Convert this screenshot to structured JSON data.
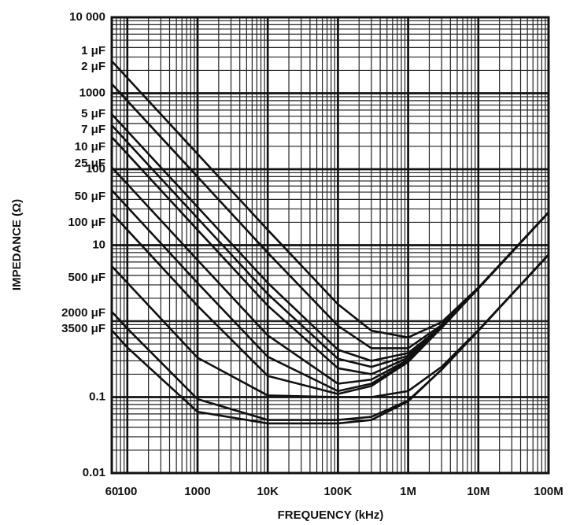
{
  "chart_data": {
    "type": "line",
    "xlabel": "FREQUENCY (kHz)",
    "ylabel": "IMPEDANCE (Ω)",
    "log_x": true,
    "log_y": true,
    "grid": true,
    "xlim": [
      60,
      100000000
    ],
    "xticks": [
      60,
      100,
      1000,
      {
        "value": 10000,
        "label": "10K"
      },
      {
        "value": 100000,
        "label": "100K"
      },
      {
        "value": 1000000,
        "label": "1M"
      },
      {
        "value": 10000000,
        "label": "10M"
      },
      {
        "value": 100000000,
        "label": "100M"
      }
    ],
    "ylim": [
      0.01,
      10000
    ],
    "yticks": [
      {
        "value": 10000,
        "label": "10 000"
      },
      1000,
      100,
      10,
      0.1,
      0.01
    ],
    "x": [
      60,
      100,
      1000,
      10000,
      100000,
      300000,
      1000000,
      3000000,
      10000000,
      100000000
    ],
    "series": [
      {
        "name": "1 μF",
        "color": "#111111",
        "values": [
          2653,
          1592,
          159,
          15.9,
          1.67,
          0.75,
          0.61,
          0.97,
          2.76,
          27
        ]
      },
      {
        "name": "2 μF",
        "color": "#111111",
        "values": [
          1326,
          796,
          79.6,
          7.96,
          0.87,
          0.44,
          0.44,
          0.89,
          2.73,
          27
        ]
      },
      {
        "name": "5 μF",
        "color": "#111111",
        "values": [
          530,
          318,
          31.8,
          3.19,
          0.42,
          0.3,
          0.38,
          0.85,
          2.72,
          27
        ]
      },
      {
        "name": "7 μF",
        "color": "#111111",
        "values": [
          379,
          227,
          22.7,
          2.28,
          0.32,
          0.25,
          0.35,
          0.85,
          2.71,
          27
        ]
      },
      {
        "name": "10 μF",
        "color": "#111111",
        "values": [
          265,
          159,
          15.9,
          1.6,
          0.24,
          0.2,
          0.33,
          0.83,
          2.71,
          27
        ]
      },
      {
        "name": "25 μF",
        "color": "#111111",
        "values": [
          106,
          63.7,
          6.37,
          0.65,
          0.15,
          0.17,
          0.31,
          0.82,
          2.7,
          27
        ]
      },
      {
        "name": "50 μF",
        "color": "#111111",
        "values": [
          53,
          31.8,
          3.18,
          0.34,
          0.12,
          0.15,
          0.3,
          0.82,
          2.7,
          27
        ]
      },
      {
        "name": "100 μF",
        "color": "#111111",
        "values": [
          26.5,
          15.9,
          1.59,
          0.19,
          0.11,
          0.14,
          0.29,
          0.82,
          2.7,
          27
        ]
      },
      {
        "name": "500 μF",
        "color": "#111111",
        "values": [
          5.3,
          3.2,
          0.33,
          0.105,
          0.1,
          0.1,
          0.12,
          0.25,
          0.76,
          7.5
        ]
      },
      {
        "name": "2000 μF",
        "color": "#111111",
        "values": [
          1.33,
          0.8,
          0.094,
          0.05,
          0.05,
          0.055,
          0.09,
          0.23,
          0.75,
          7.5
        ]
      },
      {
        "name": "3500 μF",
        "color": "#111111",
        "values": [
          0.76,
          0.45,
          0.064,
          0.045,
          0.045,
          0.05,
          0.088,
          0.23,
          0.75,
          7.5
        ]
      }
    ]
  }
}
